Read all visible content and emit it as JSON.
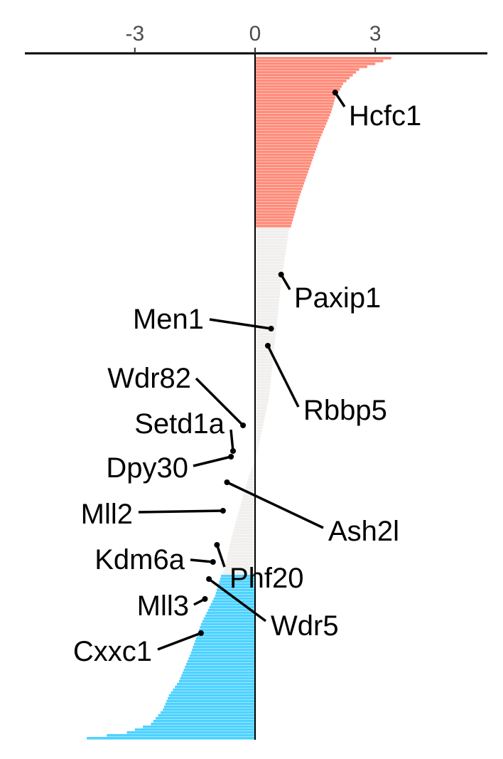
{
  "chart_data": {
    "type": "bar",
    "orientation": "horizontal",
    "title": "",
    "xlabel": "",
    "ylabel": "",
    "xlim": [
      -6,
      6
    ],
    "x_axis_position": "top",
    "x_ticks": [
      -3,
      0,
      3
    ],
    "x_tick_labels": [
      "-3",
      "0",
      "3"
    ],
    "grid": false,
    "legend": "none",
    "n_bars": 240,
    "colors": {
      "positive": "#ff8c7a",
      "neutral": "#f0efed",
      "negative": "#4dd2ff",
      "axis": "#000000",
      "tick_label": "#4d4d4d",
      "label": "#000000"
    },
    "groups": [
      {
        "name": "up",
        "from_rank": 1,
        "to_rank": 60
      },
      {
        "name": "neutral",
        "from_rank": 61,
        "to_rank": 182
      },
      {
        "name": "down",
        "from_rank": 183,
        "to_rank": 240
      }
    ],
    "profile_rank": [
      1,
      5,
      10,
      15,
      20,
      30,
      40,
      50,
      60,
      61,
      80,
      100,
      120,
      140,
      150,
      160,
      170,
      180,
      182,
      183,
      190,
      200,
      210,
      220,
      225,
      230,
      235,
      238,
      240
    ],
    "profile_value": [
      3.4,
      2.6,
      2.2,
      2.0,
      1.9,
      1.6,
      1.35,
      1.1,
      0.9,
      0.85,
      0.65,
      0.5,
      0.35,
      0.05,
      -0.2,
      -0.4,
      -0.6,
      -0.75,
      -0.8,
      -0.85,
      -1.0,
      -1.35,
      -1.6,
      -1.9,
      -2.15,
      -2.3,
      -2.6,
      -3.2,
      -4.2
    ],
    "highlighted_genes": [
      {
        "gene": "Hcfc1",
        "rank": 13,
        "value": 2.0
      },
      {
        "gene": "Paxip1",
        "rank": 77,
        "value": 0.65
      },
      {
        "gene": "Men1",
        "rank": 96,
        "value": 0.4
      },
      {
        "gene": "Rbbp5",
        "rank": 102,
        "value": 0.32
      },
      {
        "gene": "Wdr82",
        "rank": 130,
        "value": -0.3
      },
      {
        "gene": "Setd1a",
        "rank": 139,
        "value": -0.55
      },
      {
        "gene": "Dpy30",
        "rank": 141,
        "value": -0.6
      },
      {
        "gene": "Ash2l",
        "rank": 150,
        "value": -0.7
      },
      {
        "gene": "Mll2",
        "rank": 160,
        "value": -0.8
      },
      {
        "gene": "Kdm6a",
        "rank": 178,
        "value": -1.05
      },
      {
        "gene": "Phf20",
        "rank": 172,
        "value": -0.95
      },
      {
        "gene": "Wdr5",
        "rank": 184,
        "value": -1.15
      },
      {
        "gene": "Mll3",
        "rank": 191,
        "value": -1.25
      },
      {
        "gene": "Cxxc1",
        "rank": 203,
        "value": -1.35
      }
    ]
  }
}
